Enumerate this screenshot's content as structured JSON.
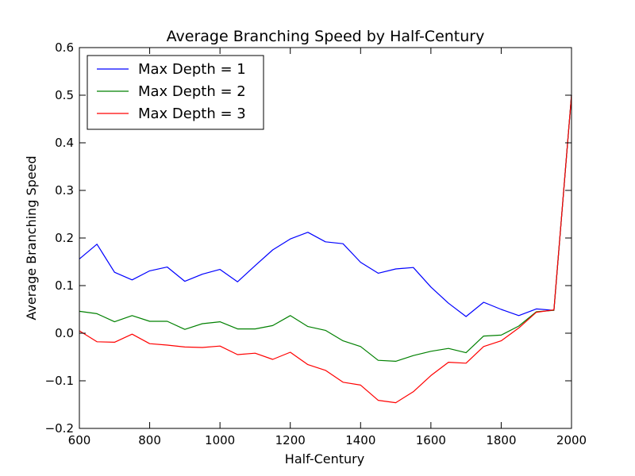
{
  "chart_data": {
    "type": "line",
    "title": "Average Branching Speed by Half-Century",
    "xlabel": "Half-Century",
    "ylabel": "Average Branching Speed",
    "xlim": [
      600,
      2000
    ],
    "ylim": [
      -0.2,
      0.6
    ],
    "xticks": [
      600,
      800,
      1000,
      1200,
      1400,
      1600,
      1800,
      2000
    ],
    "xtick_labels": [
      "600",
      "800",
      "1000",
      "1200",
      "1400",
      "1600",
      "1800",
      "2000"
    ],
    "yticks": [
      -0.2,
      -0.1,
      0.0,
      0.1,
      0.2,
      0.3,
      0.4,
      0.5,
      0.6
    ],
    "ytick_labels": [
      "−0.2",
      "−0.1",
      "0.0",
      "0.1",
      "0.2",
      "0.3",
      "0.4",
      "0.5",
      "0.6"
    ],
    "grid": false,
    "legend_position": "top-left",
    "x": [
      600,
      650,
      700,
      750,
      800,
      850,
      900,
      950,
      1000,
      1050,
      1100,
      1150,
      1200,
      1250,
      1300,
      1350,
      1400,
      1450,
      1500,
      1550,
      1600,
      1650,
      1700,
      1750,
      1800,
      1850,
      1900,
      1950,
      2000
    ],
    "series": [
      {
        "name": "Max Depth = 1",
        "color": "#0000ff",
        "values": [
          0.156,
          0.187,
          0.128,
          0.112,
          0.131,
          0.139,
          0.109,
          0.124,
          0.134,
          0.108,
          0.142,
          0.175,
          0.198,
          0.212,
          0.192,
          0.188,
          0.149,
          0.126,
          0.135,
          0.138,
          0.097,
          0.063,
          0.035,
          0.065,
          0.05,
          0.037,
          0.051,
          0.048,
          0.5
        ]
      },
      {
        "name": "Max Depth = 2",
        "color": "#008000",
        "values": [
          0.046,
          0.041,
          0.024,
          0.037,
          0.025,
          0.025,
          0.008,
          0.02,
          0.024,
          0.009,
          0.009,
          0.016,
          0.037,
          0.014,
          0.006,
          -0.016,
          -0.028,
          -0.057,
          -0.059,
          -0.047,
          -0.038,
          -0.032,
          -0.041,
          -0.006,
          -0.004,
          0.015,
          0.045,
          0.048,
          0.5
        ]
      },
      {
        "name": "Max Depth = 3",
        "color": "#ff0000",
        "values": [
          0.005,
          -0.018,
          -0.019,
          -0.002,
          -0.022,
          -0.025,
          -0.029,
          -0.03,
          -0.027,
          -0.045,
          -0.042,
          -0.055,
          -0.04,
          -0.066,
          -0.078,
          -0.103,
          -0.109,
          -0.141,
          -0.146,
          -0.123,
          -0.089,
          -0.061,
          -0.063,
          -0.028,
          -0.016,
          0.011,
          0.044,
          0.049,
          0.5
        ]
      }
    ]
  }
}
